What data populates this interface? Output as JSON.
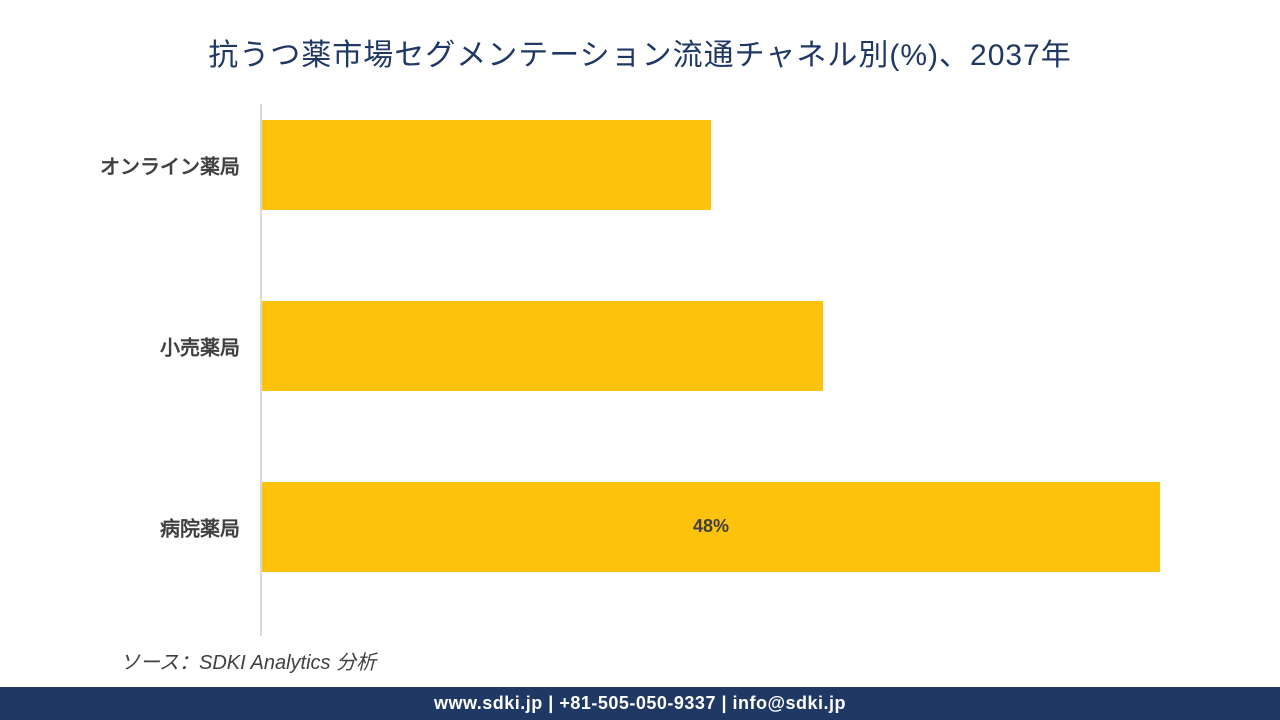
{
  "chart": {
    "type": "bar-horizontal",
    "title": "抗うつ薬市場セグメンテーション流通チャネル別(%)、2037年",
    "title_fontsize": 30,
    "title_color": "#203864",
    "background_color": "#ffffff",
    "axis_color": "#d9d9d9",
    "x_range_percent": 48,
    "bars": [
      {
        "category": "オンライン薬局",
        "value": 24,
        "color": "#fdc20c",
        "top_percent": 3,
        "show_label": false,
        "label": ""
      },
      {
        "category": "小売薬局",
        "value": 30,
        "color": "#fdc20c",
        "top_percent": 37,
        "show_label": false,
        "label": ""
      },
      {
        "category": "病院薬局",
        "value": 48,
        "color": "#fdc20c",
        "top_percent": 71,
        "show_label": true,
        "label": "48%"
      }
    ]
  },
  "source_line": "ソース：SDKI Analytics 分析",
  "footer_text": "www.sdki.jp | +81-505-050-9337 | info@sdki.jp",
  "footer_bg": "#203864",
  "footer_fg": "#ffffff"
}
